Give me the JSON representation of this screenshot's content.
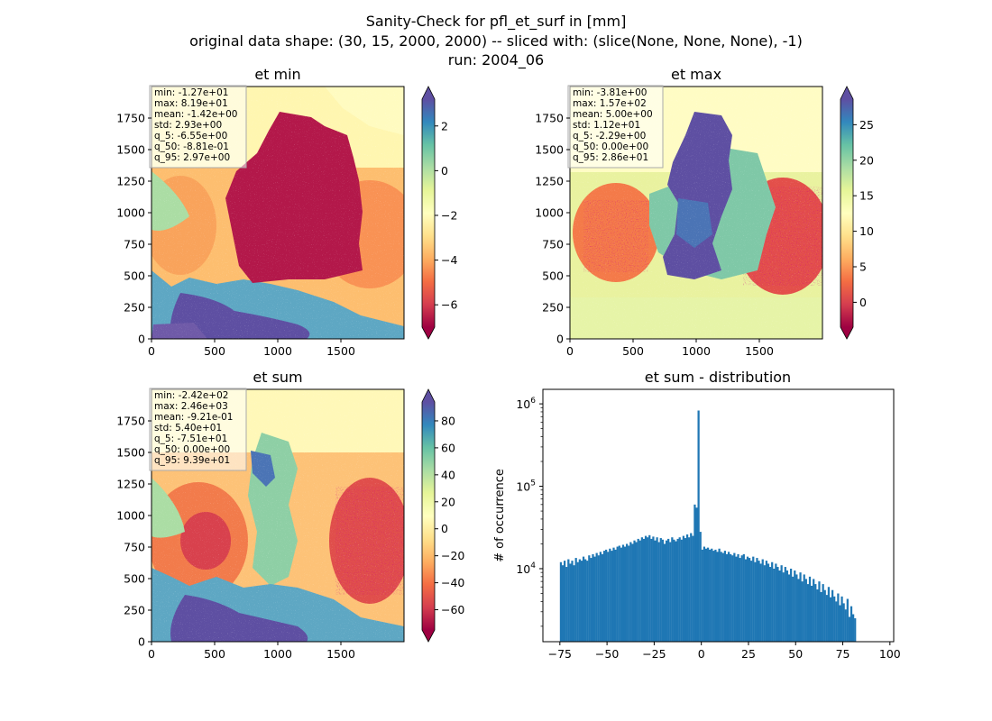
{
  "figure": {
    "title_lines": [
      "Sanity-Check for pfl_et_surf in [mm]",
      "original data shape: (30, 15, 2000, 2000) -- sliced with: (slice(None, None, None), -1)",
      "run: 2004_06"
    ]
  },
  "chart_data": [
    {
      "type": "heatmap",
      "title": "et min",
      "colormap": "Spectral",
      "xlim": [
        0,
        2000
      ],
      "ylim": [
        0,
        2000
      ],
      "x_ticks": [
        0,
        500,
        1000,
        1500
      ],
      "y_ticks": [
        0,
        250,
        500,
        750,
        1000,
        1250,
        1500,
        1750
      ],
      "colorbar": {
        "range": [
          -7,
          3.2
        ],
        "ticks": [
          2,
          0,
          -2,
          -4,
          -6
        ],
        "tick_labels": [
          "2",
          "0",
          "−2",
          "−4",
          "−6"
        ],
        "extend": "both"
      },
      "stats": [
        "min: -1.27e+01",
        "max: 8.19e+01",
        "mean: -1.42e+00",
        "std: 2.93e+00",
        "q_5: -6.55e+00",
        "q_50: -8.81e-01",
        "q_95: 2.97e+00"
      ]
    },
    {
      "type": "heatmap",
      "title": "et max",
      "colormap": "Spectral",
      "xlim": [
        0,
        2000
      ],
      "ylim": [
        0,
        2000
      ],
      "x_ticks": [
        0,
        500,
        1000,
        1500
      ],
      "y_ticks": [
        0,
        250,
        500,
        750,
        1000,
        1250,
        1500,
        1750
      ],
      "colorbar": {
        "range": [
          -3.5,
          28.6
        ],
        "ticks": [
          25,
          20,
          15,
          10,
          5,
          0
        ],
        "tick_labels": [
          "25",
          "20",
          "15",
          "10",
          "5",
          "0"
        ],
        "extend": "both"
      },
      "stats": [
        "min: -3.81e+00",
        "max: 1.57e+02",
        "mean: 5.00e+00",
        "std: 1.12e+01",
        "q_5: -2.29e+00",
        "q_50: 0.00e+00",
        "q_95: 2.86e+01"
      ]
    },
    {
      "type": "heatmap",
      "title": "et sum",
      "colormap": "Spectral",
      "xlim": [
        0,
        2000
      ],
      "ylim": [
        0,
        2000
      ],
      "x_ticks": [
        0,
        500,
        1000,
        1500
      ],
      "y_ticks": [
        0,
        250,
        500,
        750,
        1000,
        1250,
        1500,
        1750
      ],
      "colorbar": {
        "range": [
          -75,
          94
        ],
        "ticks": [
          80,
          60,
          40,
          20,
          0,
          -20,
          -40,
          -60
        ],
        "tick_labels": [
          "80",
          "60",
          "40",
          "20",
          "0",
          "−20",
          "−40",
          "−60"
        ],
        "extend": "both"
      },
      "stats": [
        "min: -2.42e+02",
        "max: 2.46e+03",
        "mean: -9.21e-01",
        "std: 5.40e+01",
        "q_5: -7.51e+01",
        "q_50: 0.00e+00",
        "q_95: 9.39e+01"
      ]
    },
    {
      "type": "bar",
      "title": "et sum - distribution",
      "xlabel": "",
      "ylabel": "# of occurrence",
      "yscale": "log",
      "xlim": [
        -84,
        102
      ],
      "ylim": [
        1300,
        1500000
      ],
      "x_ticks": [
        -75,
        -50,
        -25,
        0,
        25,
        50,
        75,
        100
      ],
      "x_tick_labels": [
        "−75",
        "−50",
        "−25",
        "0",
        "25",
        "50",
        "75",
        "100"
      ],
      "y_ticks": [
        10000,
        100000,
        1000000
      ],
      "y_tick_labels": [
        "10^4",
        "10^5",
        "10^6"
      ],
      "bar_color": "#1f77b4",
      "bins": {
        "start": -75,
        "width": 1,
        "counts": [
          12000,
          11000,
          12500,
          10500,
          13000,
          11500,
          12500,
          11000,
          13500,
          12000,
          13000,
          12500,
          14000,
          13000,
          12500,
          14500,
          13500,
          15000,
          14000,
          15500,
          14500,
          16000,
          15000,
          16500,
          17000,
          16000,
          17500,
          16500,
          18000,
          17000,
          18500,
          19000,
          18000,
          19500,
          18500,
          20000,
          19000,
          21000,
          20000,
          22000,
          21000,
          23000,
          22000,
          24000,
          23000,
          25000,
          24000,
          25500,
          23000,
          24500,
          22000,
          24000,
          21000,
          23500,
          22500,
          20000,
          22000,
          23000,
          21000,
          24000,
          22500,
          21500,
          23000,
          24000,
          22500,
          25000,
          23500,
          26000,
          24000,
          27000,
          25000,
          60000,
          55000,
          830000,
          28000,
          17000,
          18500,
          17500,
          18000,
          17000,
          17500,
          16500,
          17000,
          16000,
          17500,
          16000,
          15500,
          16500,
          15000,
          16000,
          15000,
          14500,
          15500,
          14000,
          15000,
          13500,
          14500,
          15000,
          13000,
          14000,
          13500,
          12500,
          14000,
          12000,
          13500,
          12500,
          11500,
          13000,
          11000,
          12500,
          11500,
          10500,
          12000,
          10000,
          11500,
          10500,
          9500,
          11000,
          9000,
          10500,
          9500,
          8500,
          10000,
          8000,
          9500,
          8500,
          7500,
          9000,
          7000,
          8500,
          7500,
          6500,
          8000,
          6200,
          7500,
          6500,
          5600,
          7000,
          5200,
          6500,
          5500,
          4800,
          6000,
          4500,
          5500,
          4600,
          4000,
          5000,
          3600,
          4600,
          3800,
          3200,
          4300,
          2600,
          3500,
          2800,
          2500
        ]
      }
    }
  ]
}
